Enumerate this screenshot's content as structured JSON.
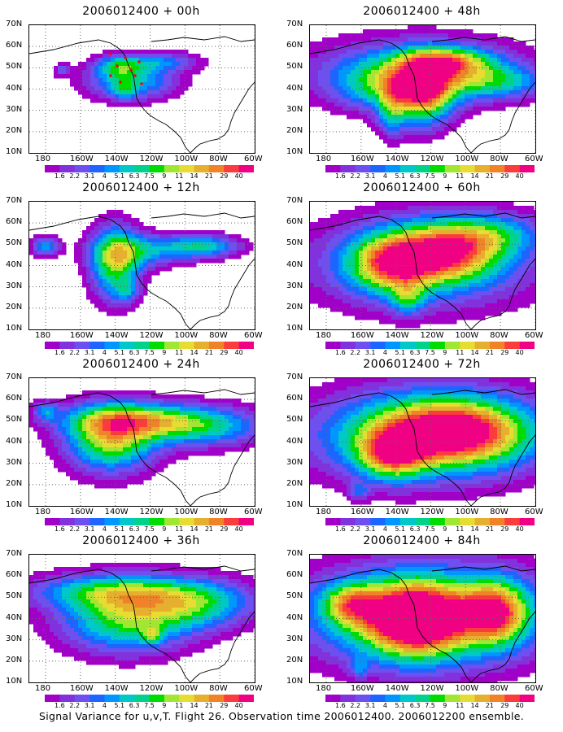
{
  "panels": [
    {
      "title": "2006012400 + 00h",
      "lead": "00h"
    },
    {
      "title": "2006012400 + 48h",
      "lead": "48h"
    },
    {
      "title": "2006012400 + 12h",
      "lead": "12h"
    },
    {
      "title": "2006012400 + 60h",
      "lead": "60h"
    },
    {
      "title": "2006012400 + 24h",
      "lead": "24h"
    },
    {
      "title": "2006012400 + 72h",
      "lead": "72h"
    },
    {
      "title": "2006012400 + 36h",
      "lead": "36h"
    },
    {
      "title": "2006012400 + 84h",
      "lead": "84h"
    }
  ],
  "axes": {
    "lat_labels": [
      "10N",
      "20N",
      "30N",
      "40N",
      "50N",
      "60N",
      "70N"
    ],
    "lon_labels": [
      "180",
      "160W",
      "140W",
      "120W",
      "100W",
      "80W",
      "60W"
    ],
    "lat_range": [
      10,
      70
    ],
    "lon_range": [
      -190,
      -60
    ],
    "grid": "dotted"
  },
  "colorbar": {
    "labels": [
      "1.6",
      "2.2",
      "3.1",
      "4",
      "5.1",
      "6.3",
      "7.5",
      "9",
      "11",
      "14",
      "21",
      "29",
      "40"
    ],
    "colors": [
      "#a000c8",
      "#8232dc",
      "#6e50f0",
      "#1e64ff",
      "#0096ff",
      "#00c8c8",
      "#00d28c",
      "#00dc00",
      "#a0e632",
      "#e6dc32",
      "#e6af2d",
      "#f08228",
      "#fa3c3c",
      "#f00082"
    ]
  },
  "footer": "Signal Variance for u,v,T. Flight 26. Observation time 2006012400. 2006012200 ensemble."
}
